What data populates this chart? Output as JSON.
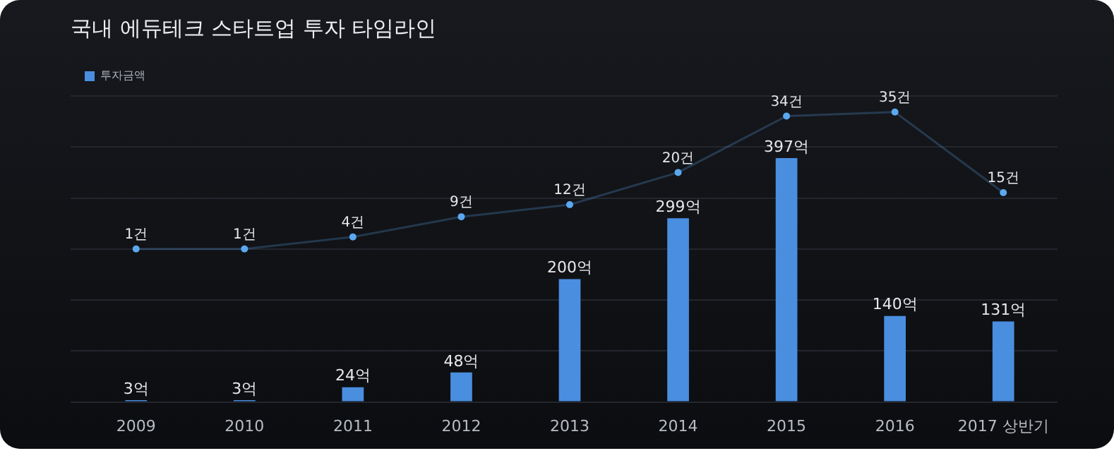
{
  "chart_data": {
    "type": "bar",
    "title": "국내 에듀테크 스타트업 투자 타임라인",
    "categories": [
      "2009",
      "2010",
      "2011",
      "2012",
      "2013",
      "2014",
      "2015",
      "2016",
      "2017 상반기"
    ],
    "series": [
      {
        "name": "투자금액",
        "color": "#4a8ee0",
        "values": [
          3,
          3,
          24,
          48,
          200,
          299,
          397,
          140,
          131
        ],
        "value_labels": [
          "3억",
          "3억",
          "24억",
          "48억",
          "200억",
          "299억",
          "397억",
          "140억",
          "131억"
        ]
      },
      {
        "type": "line",
        "axis": "y2",
        "color": "#5aa8f0",
        "values": [
          1,
          1,
          4,
          9,
          12,
          20,
          34,
          35,
          15
        ],
        "value_labels": [
          "1건",
          "1건",
          "4건",
          "9건",
          "12건",
          "20건",
          "34건",
          "35건",
          "15건"
        ]
      }
    ],
    "ylim": [
      0,
      498
    ],
    "yticks": [
      {
        "value": 0,
        "label": null
      },
      {
        "value": 83,
        "label": null
      },
      {
        "value": 166,
        "label": null
      },
      {
        "value": 249,
        "label": null
      },
      {
        "value": 332,
        "label": null
      },
      {
        "value": 415,
        "label": null
      },
      {
        "value": 498,
        "label": null
      }
    ],
    "y2lim": [
      -37,
      39
    ],
    "grid": "y",
    "legend": "top left",
    "tick_labels": "x",
    "marker": "circle"
  }
}
